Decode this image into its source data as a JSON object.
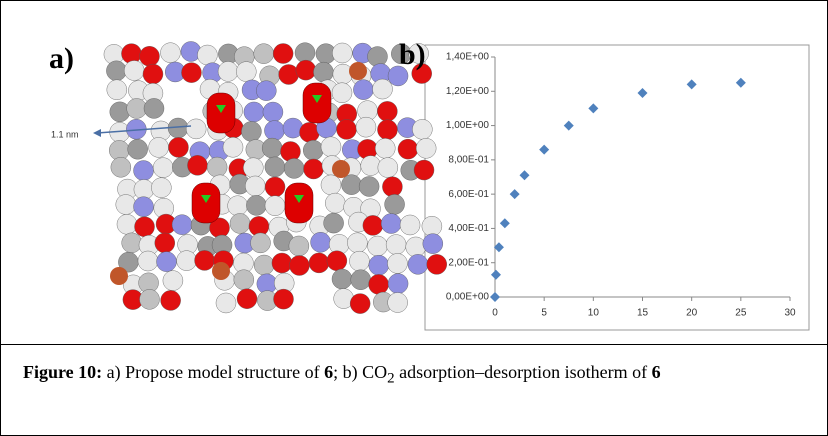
{
  "panels": {
    "a_label": "a)",
    "b_label": "b)",
    "annotation": "1.1 nm"
  },
  "chart_data": {
    "type": "scatter",
    "color": "#4f81bd",
    "x": [
      0,
      0.1,
      0.4,
      1,
      2,
      3,
      5,
      7.5,
      10,
      15,
      20,
      25
    ],
    "values": [
      0,
      0.13,
      0.29,
      0.43,
      0.6,
      0.71,
      0.86,
      1.0,
      1.1,
      1.19,
      1.24,
      1.25
    ],
    "xlim": [
      0,
      30
    ],
    "xticks": [
      0,
      5,
      10,
      15,
      20,
      25,
      30
    ],
    "ylim": [
      0,
      1.4
    ],
    "yticks": [
      {
        "value": 0,
        "label": "0,00E+00"
      },
      {
        "value": 0.2,
        "label": "2,00E-01"
      },
      {
        "value": 0.4,
        "label": "4,00E-01"
      },
      {
        "value": 0.6,
        "label": "6,00E-01"
      },
      {
        "value": 0.8,
        "label": "8,00E-01"
      },
      {
        "value": 1.0,
        "label": "1,00E+00"
      },
      {
        "value": 1.2,
        "label": "1,20E+00"
      },
      {
        "value": 1.4,
        "label": "1,40E+00"
      }
    ]
  },
  "caption": {
    "label": "Figure 10:",
    "part1": " a) Propose model structure of ",
    "compound1": "6",
    "part2": "; b) CO",
    "subscript": "2",
    "part3": " adsorption–desorption isotherm of ",
    "compound2": "6"
  }
}
